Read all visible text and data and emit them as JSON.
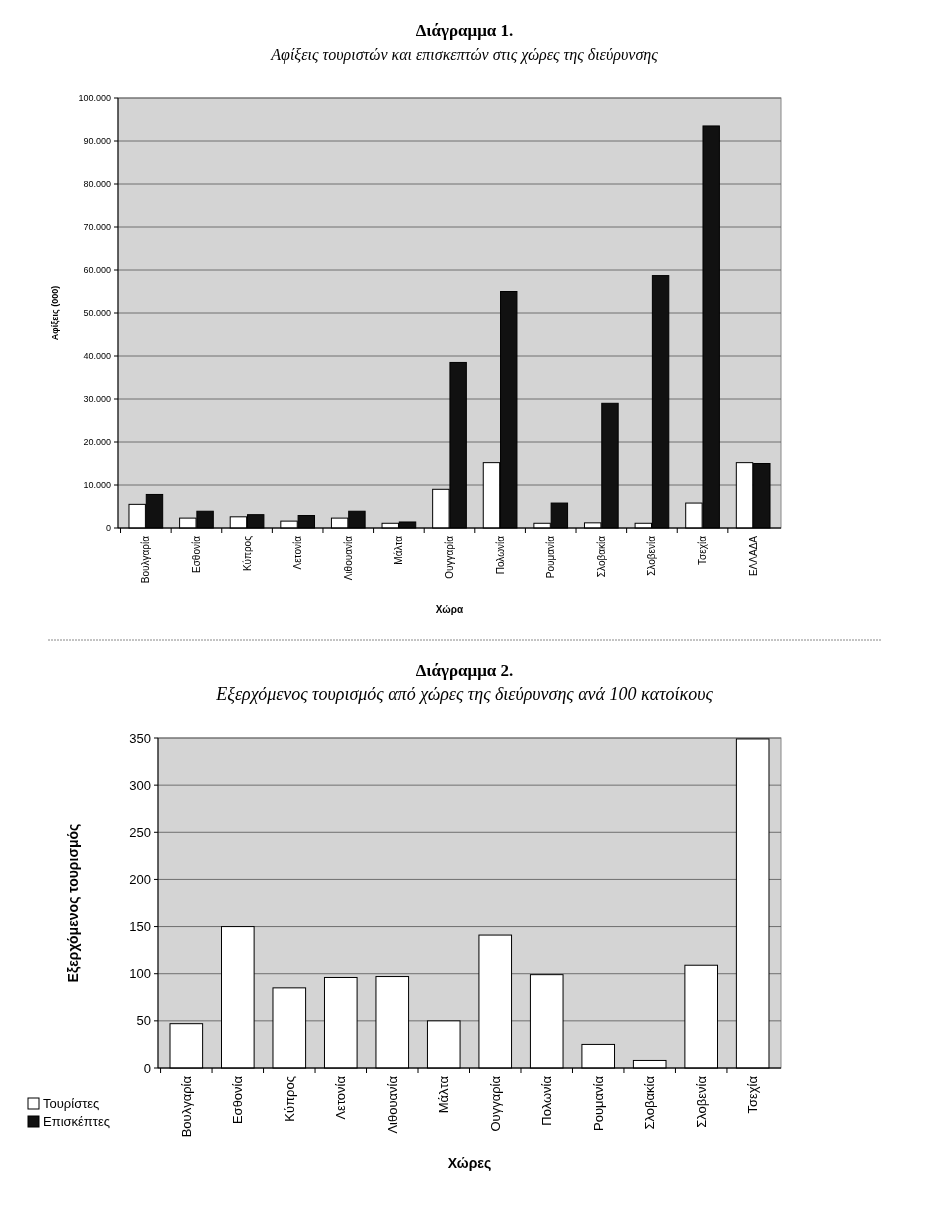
{
  "chart_data": [
    {
      "type": "bar",
      "title": "Διάγραμμα 1.",
      "subtitle": "Αφίξεις τουριστών και επισκεπτών στις χώρες της διεύρυνσης",
      "xlabel": "Χώρα",
      "ylabel": "Αφίξεις (000)",
      "categories": [
        "Βουλγαρία",
        "Εσθονία",
        "Κύπρος",
        "Λετονία",
        "Λιθουανία",
        "Μάλτα",
        "Ουγγαρία",
        "Πολωνία",
        "Ρουμανία",
        "Σλοβακία",
        "Σλοβενία",
        "Τσεχία",
        "ΕΛΛΑΔΑ"
      ],
      "series": [
        {
          "name": "Τουρίστες",
          "color": "#ffffff",
          "values": [
            5500,
            2300,
            2600,
            1600,
            2300,
            1100,
            9000,
            15200,
            1100,
            1200,
            1100,
            5800,
            15200
          ]
        },
        {
          "name": "Επισκέπτες",
          "color": "#111111",
          "values": [
            7800,
            3900,
            3100,
            2900,
            3900,
            1400,
            38500,
            55000,
            5800,
            29000,
            58700,
            93500,
            15000
          ]
        }
      ],
      "ylim": [
        0,
        100000
      ],
      "yticks": [
        {
          "value": 0,
          "label": "0"
        },
        {
          "value": 10000,
          "label": "10.000"
        },
        {
          "value": 20000,
          "label": "20.000"
        },
        {
          "value": 30000,
          "label": "30.000"
        },
        {
          "value": 40000,
          "label": "40.000"
        },
        {
          "value": 50000,
          "label": "50.000"
        },
        {
          "value": 60000,
          "label": "60.000"
        },
        {
          "value": 70000,
          "label": "70.000"
        },
        {
          "value": 80000,
          "label": "80.000"
        },
        {
          "value": 90000,
          "label": "90.000"
        },
        {
          "value": 100000,
          "label": "100.000"
        }
      ],
      "grid": "y",
      "legend": "bottom left"
    },
    {
      "type": "bar",
      "title": "Διάγραμμα 2.",
      "subtitle": "Εξερχόμενος τουρισμός από χώρες της διεύρυνσης ανά 100 κατοίκους",
      "xlabel": "Χώρες",
      "ylabel": "Εξερχόμενος τουρισμός",
      "categories": [
        "Βουλγαρία",
        "Εσθονία",
        "Κύπρος",
        "Λετονία",
        "Λιθουανία",
        "Μάλτα",
        "Ουγγαρία",
        "Πολωνία",
        "Ρουμανία",
        "Σλοβακία",
        "Σλοβενία",
        "Τσεχία"
      ],
      "series": [
        {
          "color": "#ffffff",
          "values": [
            47,
            150,
            85,
            96,
            97,
            50,
            141,
            99,
            25,
            8,
            109,
            349
          ]
        }
      ],
      "ylim": [
        0,
        350
      ],
      "yticks": [
        0,
        50,
        100,
        150,
        200,
        250,
        300,
        350
      ],
      "grid": "y"
    }
  ]
}
